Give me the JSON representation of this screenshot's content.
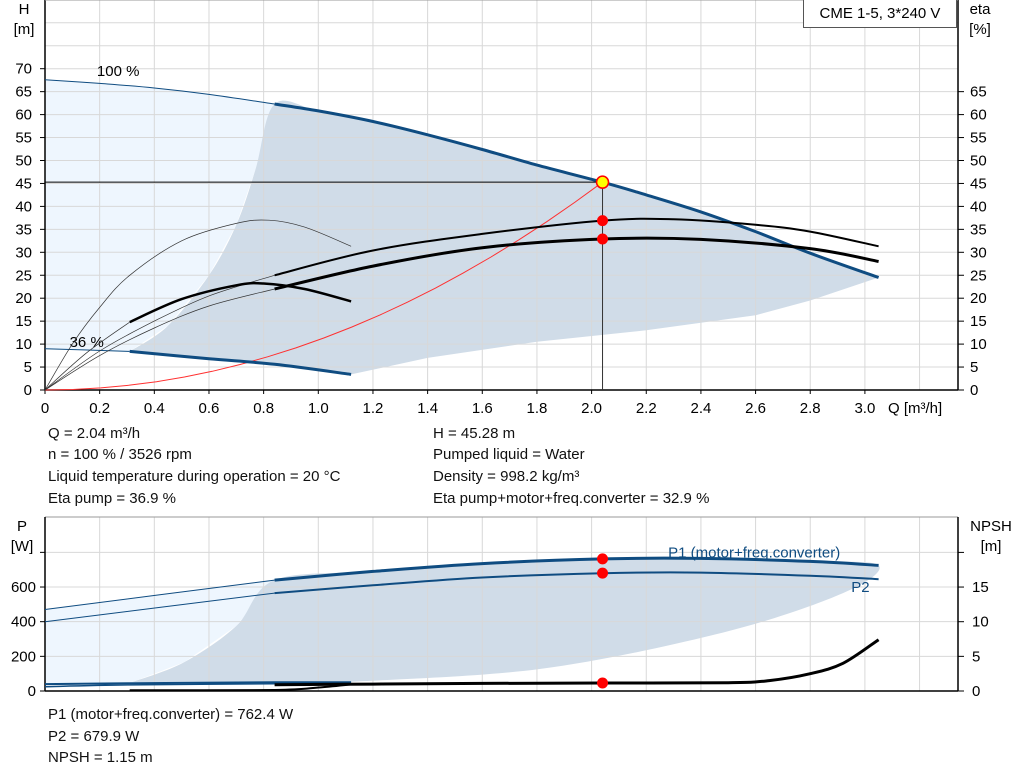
{
  "legend_title": "CME 1-5, 3*240 V",
  "info_top": {
    "q": "Q = 2.04 m³/h",
    "n": "n = 100 % / 3526 rpm",
    "temp": "Liquid temperature during operation = 20 °C",
    "eta_pump": "Eta pump = 36.9 %",
    "h": "H = 45.28 m",
    "liquid": "Pumped liquid = Water",
    "density": "Density = 998.2 kg/m³",
    "eta_total": "Eta pump+motor+freq.converter = 32.9 %"
  },
  "info_bottom": {
    "p1": "P1 (motor+freq.converter) = 762.4 W",
    "p2": "P2 = 679.9 W",
    "npsh": "NPSH = 1.15 m"
  },
  "colors": {
    "curve_blue": "#0f4c81",
    "area_operating": "#d0dce8",
    "area_extended": "#eef6fe",
    "grid": "#d8d8d8",
    "system_curve": "#ff3030",
    "duty_point": "#ffff00",
    "marker": "#ff0000"
  },
  "chart_data": [
    {
      "type": "line",
      "title": "",
      "xlabel": "Q [m³/h]",
      "ylabel": "H\n[m]",
      "y2label": "eta\n[%]",
      "xlim": [
        0,
        3.4
      ],
      "ylim": [
        0,
        85
      ],
      "grid": true,
      "x_ticks": [
        "0",
        "0.2",
        "0.4",
        "0.6",
        "0.8",
        "1.0",
        "1.2",
        "1.4",
        "1.6",
        "1.8",
        "2.0",
        "2.2",
        "2.4",
        "2.6",
        "2.8",
        "3.0"
      ],
      "y_ticks": [
        "0",
        "5",
        "10",
        "15",
        "20",
        "25",
        "30",
        "35",
        "40",
        "45",
        "50",
        "55",
        "60",
        "65",
        "70"
      ],
      "y2_ticks": [
        "0",
        "5",
        "10",
        "15",
        "20",
        "25",
        "30",
        "35",
        "40",
        "45",
        "50",
        "55",
        "60",
        "65"
      ],
      "annotations": [
        {
          "text": "100 %",
          "x": 0.19,
          "y": 69.5
        },
        {
          "text": "36 %",
          "x": 0.09,
          "y": 10.5
        }
      ],
      "areas": {
        "operating": [
          [
            0.31,
            8.4
          ],
          [
            0.45,
            14
          ],
          [
            0.6,
            25
          ],
          [
            0.7,
            36
          ],
          [
            0.77,
            48
          ],
          [
            0.84,
            62.3
          ],
          [
            1.0,
            60.8
          ],
          [
            1.2,
            58.5
          ],
          [
            1.4,
            55.6
          ],
          [
            1.6,
            52.4
          ],
          [
            1.8,
            49
          ],
          [
            2.04,
            45.28
          ],
          [
            2.2,
            42.5
          ],
          [
            2.4,
            38.8
          ],
          [
            2.6,
            34.5
          ],
          [
            2.8,
            29.8
          ],
          [
            3.05,
            24.5
          ],
          [
            2.8,
            19.5
          ],
          [
            2.6,
            16.3
          ],
          [
            2.2,
            13
          ],
          [
            1.8,
            10.5
          ],
          [
            1.4,
            7
          ],
          [
            1.12,
            3.4
          ],
          [
            0.84,
            5.6
          ],
          [
            0.6,
            6.8
          ],
          [
            0.31,
            8.4
          ]
        ],
        "extended": [
          [
            0,
            67.6
          ],
          [
            0.2,
            66.8
          ],
          [
            0.4,
            65.8
          ],
          [
            0.6,
            64.4
          ],
          [
            0.84,
            62.3
          ],
          [
            0.77,
            48
          ],
          [
            0.7,
            36
          ],
          [
            0.6,
            25
          ],
          [
            0.45,
            14
          ],
          [
            0.31,
            8.4
          ],
          [
            0,
            9
          ]
        ]
      },
      "series": [
        {
          "id": "head-100-thin",
          "width": 1,
          "color": "curve_blue",
          "points": [
            [
              0,
              67.6
            ],
            [
              0.2,
              66.8
            ],
            [
              0.4,
              65.8
            ],
            [
              0.6,
              64.4
            ],
            [
              0.84,
              62.3
            ]
          ]
        },
        {
          "id": "head-100",
          "width": 3,
          "color": "curve_blue",
          "points": [
            [
              0.84,
              62.3
            ],
            [
              1.0,
              60.8
            ],
            [
              1.2,
              58.5
            ],
            [
              1.4,
              55.6
            ],
            [
              1.6,
              52.4
            ],
            [
              1.8,
              49
            ],
            [
              2.04,
              45.28
            ],
            [
              2.2,
              42.5
            ],
            [
              2.4,
              38.8
            ],
            [
              2.6,
              34.5
            ],
            [
              2.8,
              29.8
            ],
            [
              3.05,
              24.5
            ]
          ]
        },
        {
          "id": "head-36-thin",
          "width": 1,
          "color": "curve_blue",
          "points": [
            [
              0,
              9
            ],
            [
              0.31,
              8.4
            ]
          ]
        },
        {
          "id": "head-36",
          "width": 3,
          "color": "curve_blue",
          "points": [
            [
              0.31,
              8.4
            ],
            [
              0.6,
              6.8
            ],
            [
              0.84,
              5.6
            ],
            [
              1.12,
              3.4
            ]
          ]
        },
        {
          "id": "eta-pump-100-thin",
          "width": 0.7,
          "color": "#333",
          "points": [
            [
              0,
              0
            ],
            [
              0.2,
              8.5
            ],
            [
              0.4,
              15
            ],
            [
              0.6,
              20.5
            ],
            [
              0.84,
              25
            ]
          ]
        },
        {
          "id": "eta-pump-100",
          "width": 2,
          "color": "#000",
          "points": [
            [
              0.84,
              25
            ],
            [
              1.2,
              30.4
            ],
            [
              1.6,
              34
            ],
            [
              2.04,
              36.9
            ],
            [
              2.3,
              37.2
            ],
            [
              2.6,
              36
            ],
            [
              2.8,
              34.5
            ],
            [
              3.05,
              31.3
            ]
          ]
        },
        {
          "id": "eta-total-100-thin",
          "width": 0.7,
          "color": "#333",
          "points": [
            [
              0,
              0
            ],
            [
              0.2,
              7.5
            ],
            [
              0.4,
              13.5
            ],
            [
              0.6,
              18.3
            ],
            [
              0.84,
              22
            ]
          ]
        },
        {
          "id": "eta-total-100",
          "width": 3,
          "color": "#000",
          "points": [
            [
              0.84,
              22
            ],
            [
              1.2,
              27
            ],
            [
              1.6,
              31
            ],
            [
              2.04,
              32.9
            ],
            [
              2.4,
              32.8
            ],
            [
              2.8,
              30.8
            ],
            [
              3.05,
              28
            ]
          ]
        },
        {
          "id": "eta-pump-36",
          "width": 0.7,
          "color": "#333",
          "points": [
            [
              0,
              0
            ],
            [
              0.1,
              10
            ],
            [
              0.2,
              18
            ],
            [
              0.31,
              25
            ],
            [
              0.5,
              32.5
            ],
            [
              0.7,
              36.3
            ],
            [
              0.82,
              37
            ],
            [
              0.95,
              35.5
            ],
            [
              1.12,
              31.3
            ]
          ]
        },
        {
          "id": "eta-total-36-thin",
          "width": 0.7,
          "color": "#333",
          "points": [
            [
              0,
              0
            ],
            [
              0.15,
              8
            ],
            [
              0.31,
              14.8
            ]
          ]
        },
        {
          "id": "eta-total-36",
          "width": 2.5,
          "color": "#000",
          "points": [
            [
              0.31,
              14.8
            ],
            [
              0.5,
              19.8
            ],
            [
              0.7,
              22.8
            ],
            [
              0.8,
              23.2
            ],
            [
              0.95,
              22
            ],
            [
              1.12,
              19.3
            ]
          ]
        }
      ],
      "system_curve": {
        "k": 10.88,
        "x_max": 2.04
      },
      "duty_point": {
        "q": 2.04,
        "h": 45.28,
        "eta_pump": 36.9,
        "eta_total": 32.9
      }
    },
    {
      "type": "line",
      "title": "",
      "ylabel": "P\n[W]",
      "y2label": "NPSH\n[m]",
      "xlim": [
        0,
        3.4
      ],
      "ylim": [
        0,
        1000
      ],
      "y2lim": [
        0,
        25
      ],
      "grid": true,
      "y_ticks": [
        "0",
        "200",
        "400",
        "600",
        ""
      ],
      "y2_ticks": [
        "0",
        "5",
        "10",
        "15",
        ""
      ],
      "labels": [
        {
          "text": "P1 (motor+freq.converter)",
          "x": 2.28,
          "y": 770
        },
        {
          "text": "P2",
          "x": 2.95,
          "y": 570
        }
      ],
      "areas": {
        "operating": [
          [
            0.32,
            52
          ],
          [
            0.51,
            167
          ],
          [
            0.7,
            375
          ],
          [
            0.84,
            640
          ],
          [
            1.2,
            690
          ],
          [
            1.6,
            735
          ],
          [
            2.04,
            762.4
          ],
          [
            2.4,
            765
          ],
          [
            2.8,
            748
          ],
          [
            3.05,
            725
          ],
          [
            2.92,
            565
          ],
          [
            2.48,
            337
          ],
          [
            1.81,
            127
          ],
          [
            1.11,
            52
          ]
        ],
        "extended": [
          [
            0,
            470
          ],
          [
            0.84,
            640
          ],
          [
            0.7,
            375
          ],
          [
            0.51,
            167
          ],
          [
            0.32,
            52
          ],
          [
            0,
            40
          ]
        ]
      },
      "series": [
        {
          "id": "p1-thin",
          "width": 1,
          "color": "curve_blue",
          "axis": "left",
          "points": [
            [
              0,
              470
            ],
            [
              0.84,
              640
            ]
          ]
        },
        {
          "id": "p1",
          "width": 3,
          "color": "curve_blue",
          "axis": "left",
          "points": [
            [
              0.84,
              640
            ],
            [
              1.2,
              690
            ],
            [
              1.6,
              735
            ],
            [
              2.04,
              762.4
            ],
            [
              2.4,
              765
            ],
            [
              2.8,
              748
            ],
            [
              3.05,
              725
            ]
          ]
        },
        {
          "id": "p2-thin",
          "width": 1,
          "color": "curve_blue",
          "axis": "left",
          "points": [
            [
              0,
              400
            ],
            [
              0.84,
              565
            ]
          ]
        },
        {
          "id": "p2",
          "width": 2,
          "color": "curve_blue",
          "axis": "left",
          "points": [
            [
              0.84,
              565
            ],
            [
              1.2,
              610
            ],
            [
              1.6,
              655
            ],
            [
              2.04,
              679.9
            ],
            [
              2.4,
              683
            ],
            [
              2.8,
              665
            ],
            [
              3.05,
              645
            ]
          ]
        },
        {
          "id": "p1-36",
          "width": 2,
          "color": "curve_blue",
          "axis": "left",
          "points": [
            [
              0,
              40
            ],
            [
              0.31,
              45
            ],
            [
              0.84,
              50
            ],
            [
              1.12,
              50
            ]
          ]
        },
        {
          "id": "p2-36",
          "width": 1.5,
          "color": "curve_blue",
          "axis": "left",
          "points": [
            [
              0,
              25
            ],
            [
              0.31,
              35
            ],
            [
              0.84,
              42
            ],
            [
              1.12,
              45
            ]
          ]
        },
        {
          "id": "npsh-36",
          "width": 2,
          "color": "#000",
          "axis": "right",
          "points": [
            [
              0.31,
              0.1
            ],
            [
              0.84,
              0.15
            ],
            [
              1.0,
              0.5
            ],
            [
              1.12,
              0.95
            ]
          ]
        },
        {
          "id": "npsh",
          "width": 3,
          "color": "#000",
          "axis": "right",
          "points": [
            [
              0.84,
              0.9
            ],
            [
              1.2,
              1.0
            ],
            [
              1.6,
              1.1
            ],
            [
              2.04,
              1.15
            ],
            [
              2.5,
              1.2
            ],
            [
              2.65,
              1.5
            ],
            [
              2.8,
              2.5
            ],
            [
              2.92,
              4
            ],
            [
              3.05,
              7.4
            ]
          ]
        }
      ],
      "duty_point": {
        "q": 2.04,
        "p1": 762.4,
        "p2": 679.9,
        "npsh": 1.15
      }
    }
  ]
}
